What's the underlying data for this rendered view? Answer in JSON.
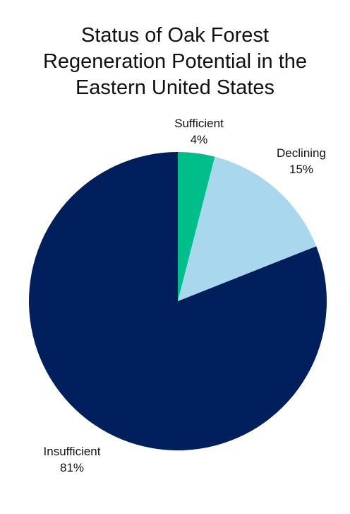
{
  "chart_data": {
    "type": "pie",
    "title_lines": [
      "Status of Oak Forest",
      "Regeneration Potential in the",
      "Eastern United States"
    ],
    "slices": [
      {
        "label": "Sufficient",
        "value": 4,
        "value_label": "4%",
        "color": "#00BE8A"
      },
      {
        "label": "Declining",
        "value": 15,
        "value_label": "15%",
        "color": "#A9D8EE"
      },
      {
        "label": "Insufficient",
        "value": 81,
        "value_label": "81%",
        "color": "#001F5C"
      }
    ],
    "start_angle": "12 o'clock",
    "direction": "clockwise",
    "legend": "none"
  }
}
